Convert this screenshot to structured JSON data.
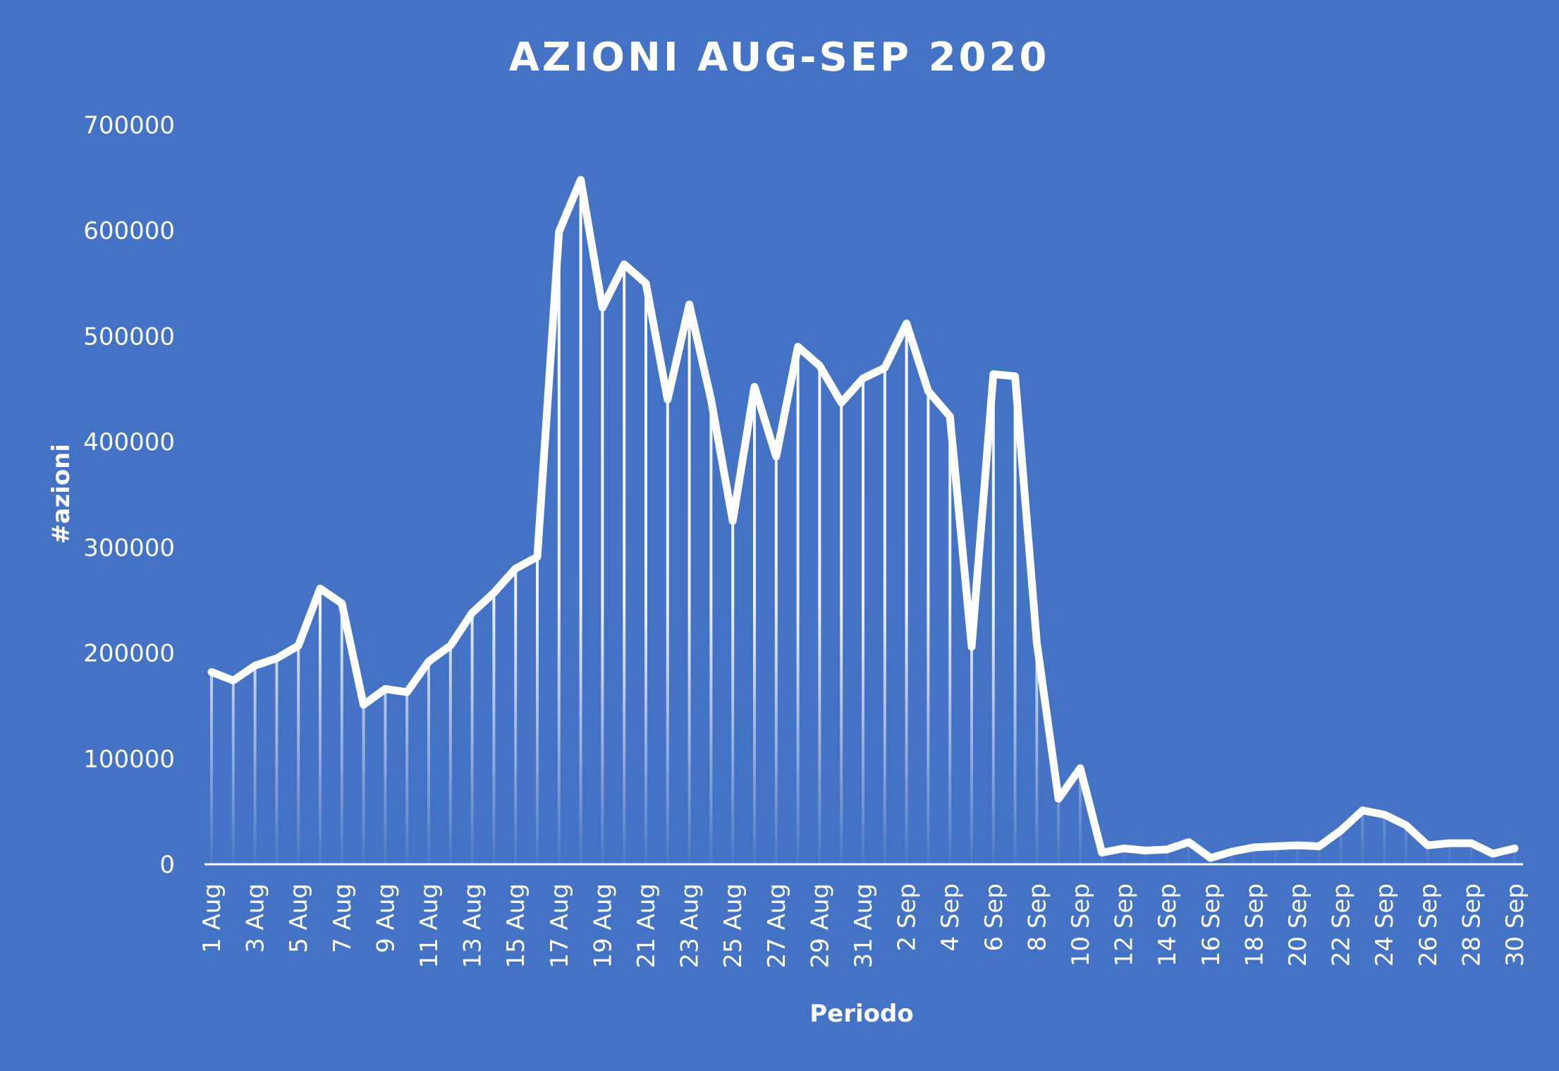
{
  "chart_data": {
    "type": "line",
    "title": "AZIONI AUG-SEP 2020",
    "xlabel": "Periodo",
    "ylabel": "#azioni",
    "ylim": [
      0,
      700000
    ],
    "yticks": [
      0,
      100000,
      200000,
      300000,
      400000,
      500000,
      600000,
      700000
    ],
    "legend": "none",
    "grid": false,
    "drop_lines": true,
    "colors": {
      "background": "#4472C4",
      "line": "#FFFFFF"
    },
    "categories": [
      "1 Aug",
      "2 Aug",
      "3 Aug",
      "4 Aug",
      "5 Aug",
      "6 Aug",
      "7 Aug",
      "8 Aug",
      "9 Aug",
      "10 Aug",
      "11 Aug",
      "12 Aug",
      "13 Aug",
      "14 Aug",
      "15 Aug",
      "16 Aug",
      "17 Aug",
      "18 Aug",
      "19 Aug",
      "20 Aug",
      "21 Aug",
      "22 Aug",
      "23 Aug",
      "24 Aug",
      "25 Aug",
      "26 Aug",
      "27 Aug",
      "28 Aug",
      "29 Aug",
      "30 Aug",
      "31 Aug",
      "1 Sep",
      "2 Sep",
      "3 Sep",
      "4 Sep",
      "5 Sep",
      "6 Sep",
      "7 Sep",
      "8 Sep",
      "9 Sep",
      "10 Sep",
      "11 Sep",
      "12 Sep",
      "13 Sep",
      "14 Sep",
      "15 Sep",
      "16 Sep",
      "17 Sep",
      "18 Sep",
      "19 Sep",
      "20 Sep",
      "21 Sep",
      "22 Sep",
      "23 Sep",
      "24 Sep",
      "25 Sep",
      "26 Sep",
      "27 Sep",
      "28 Sep",
      "29 Sep",
      "30 Sep"
    ],
    "tick_labels": [
      "1 Aug",
      "3 Aug",
      "5 Aug",
      "7 Aug",
      "9 Aug",
      "11 Aug",
      "13 Aug",
      "15 Aug",
      "17 Aug",
      "19 Aug",
      "21 Aug",
      "23 Aug",
      "25 Aug",
      "27 Aug",
      "29 Aug",
      "31 Aug",
      "2 Sep",
      "4 Sep",
      "6 Sep",
      "8 Sep",
      "10 Sep",
      "12 Sep",
      "14 Sep",
      "16 Sep",
      "18 Sep",
      "20 Sep",
      "22 Sep",
      "24 Sep",
      "26 Sep",
      "28 Sep",
      "30 Sep"
    ],
    "series": [
      {
        "values": [
          182000,
          174000,
          188000,
          195000,
          207000,
          261000,
          247000,
          151000,
          166000,
          163000,
          192000,
          207000,
          238000,
          257000,
          280000,
          291000,
          599000,
          648000,
          527000,
          568000,
          550000,
          440000,
          530000,
          440000,
          325000,
          452000,
          386000,
          490000,
          472000,
          437000,
          460000,
          470000,
          512000,
          448000,
          424000,
          206000,
          464000,
          462000,
          210000,
          62000,
          91000,
          11000,
          15000,
          13000,
          14000,
          21000,
          6000,
          12000,
          16000,
          17000,
          18000,
          17000,
          32000,
          51000,
          47000,
          37000,
          18000,
          20000,
          20000,
          10000,
          15000
        ]
      }
    ]
  }
}
